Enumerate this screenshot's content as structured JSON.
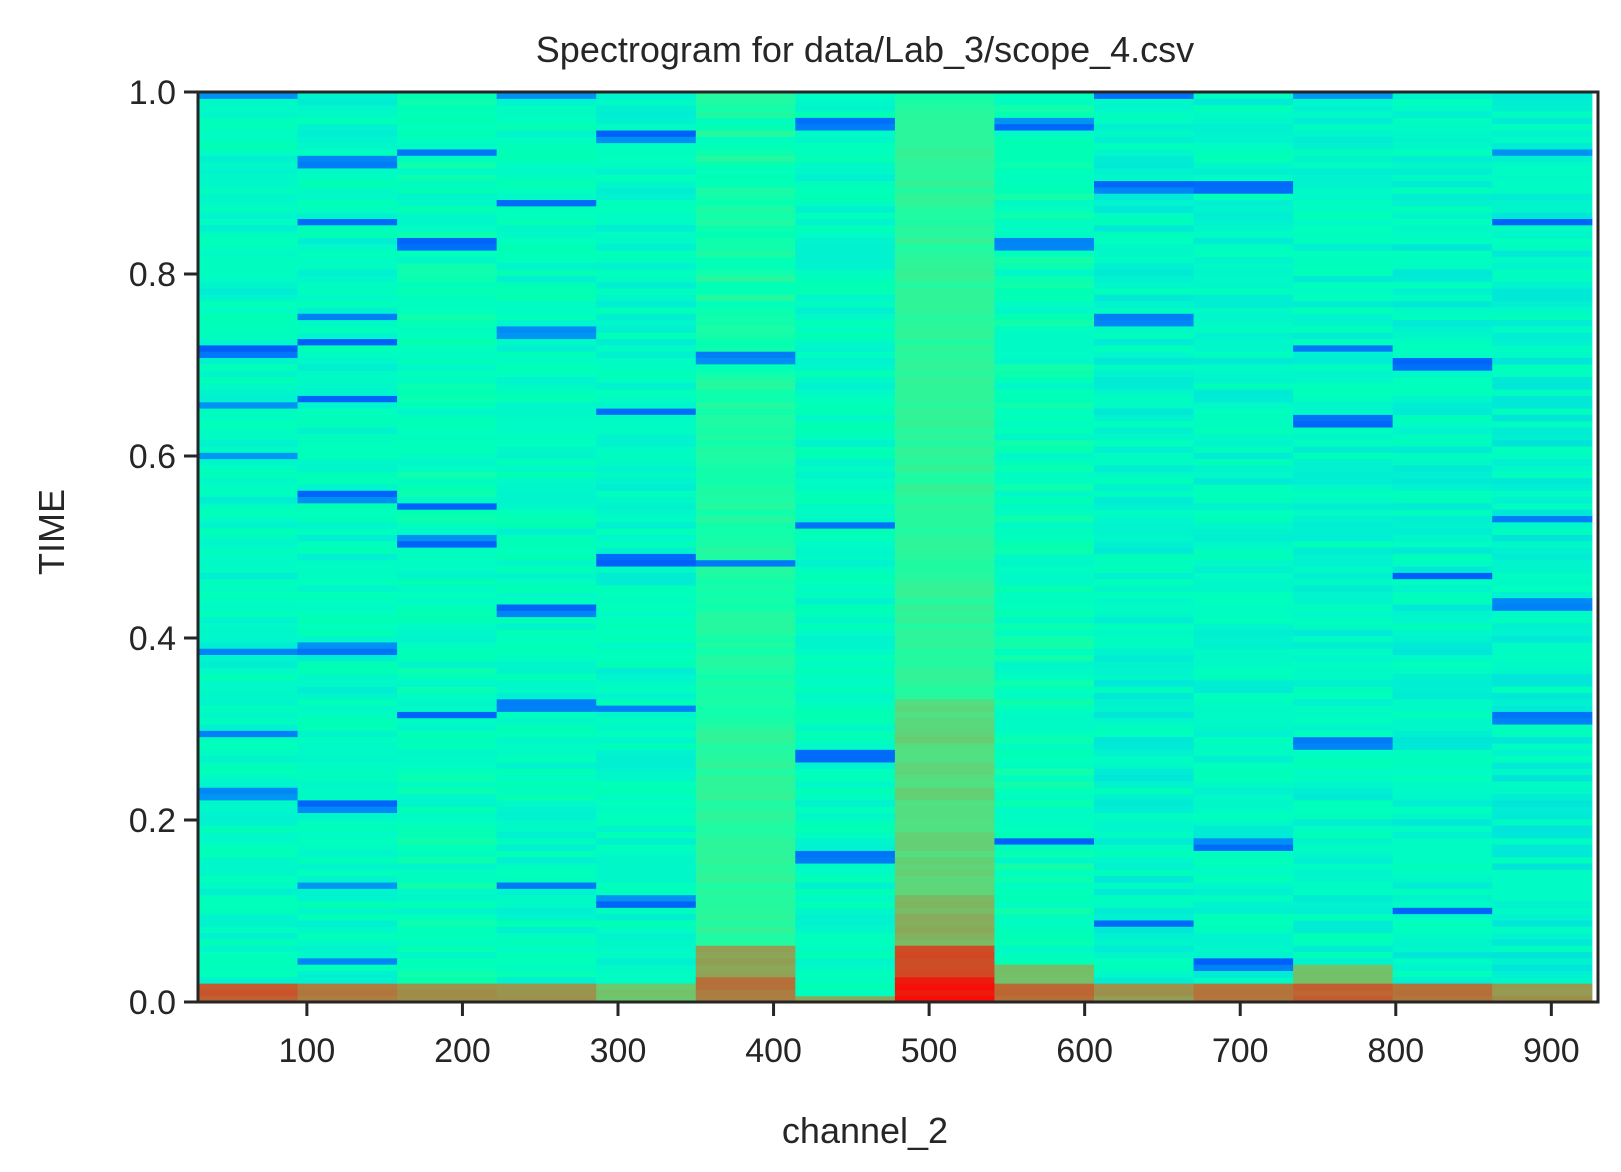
{
  "chart_data": {
    "type": "heatmap",
    "title": "Spectrogram for data/Lab_3/scope_4.csv",
    "xlabel": "channel_2",
    "ylabel": "TIME",
    "xlim": [
      30,
      930
    ],
    "ylim": [
      0,
      1.0
    ],
    "x_ticks": [
      100,
      200,
      300,
      400,
      500,
      600,
      700,
      800,
      900
    ],
    "x_tick_labels": [
      "100",
      "200",
      "300",
      "400",
      "500",
      "600",
      "700",
      "800",
      "900"
    ],
    "y_ticks": [
      0.0,
      0.2,
      0.4,
      0.6,
      0.8,
      1.0
    ],
    "y_tick_labels": [
      "0.0",
      "0.2",
      "0.4",
      "0.6",
      "0.8",
      "1.0"
    ],
    "grid": false,
    "colormap": "rainbow",
    "frequency_bins": [
      62,
      126,
      190,
      254,
      318,
      382,
      446,
      510,
      574,
      638,
      702,
      766,
      830,
      894
    ],
    "bin_width": 64,
    "time_rows": 144,
    "intensity_scale": [
      0,
      1
    ],
    "columns": [
      {
        "base": 0.44,
        "low_end": [
          [
            0.0,
            0.02,
            0.88
          ]
        ],
        "high_spots": []
      },
      {
        "base": 0.44,
        "low_end": [
          [
            0.0,
            0.02,
            0.85
          ]
        ],
        "high_spots": []
      },
      {
        "base": 0.47,
        "low_end": [
          [
            0.0,
            0.02,
            0.8
          ]
        ],
        "high_spots": []
      },
      {
        "base": 0.45,
        "low_end": [
          [
            0.0,
            0.02,
            0.8
          ]
        ],
        "high_spots": []
      },
      {
        "base": 0.44,
        "low_end": [
          [
            0.0,
            0.02,
            0.72
          ]
        ],
        "high_spots": []
      },
      {
        "base": 0.52,
        "low_end": [
          [
            0.0,
            0.03,
            0.85
          ],
          [
            0.03,
            0.06,
            0.78
          ]
        ],
        "high_spots": [
          [
            0.06,
            0.3,
            0.58
          ],
          [
            0.3,
            0.68,
            0.55
          ]
        ]
      },
      {
        "base": 0.45,
        "low_end": [
          [
            0.0,
            0.01,
            0.78
          ]
        ],
        "high_spots": []
      },
      {
        "base": 0.56,
        "low_end": [
          [
            0.0,
            0.03,
            0.98
          ],
          [
            0.03,
            0.06,
            0.9
          ]
        ],
        "high_spots": [
          [
            0.06,
            0.12,
            0.75
          ],
          [
            0.12,
            0.33,
            0.68
          ],
          [
            0.33,
            0.97,
            0.58
          ]
        ]
      },
      {
        "base": 0.48,
        "low_end": [
          [
            0.0,
            0.02,
            0.86
          ],
          [
            0.02,
            0.04,
            0.74
          ]
        ],
        "high_spots": []
      },
      {
        "base": 0.42,
        "low_end": [
          [
            0.0,
            0.02,
            0.8
          ]
        ],
        "high_spots": []
      },
      {
        "base": 0.43,
        "low_end": [
          [
            0.0,
            0.02,
            0.86
          ]
        ],
        "high_spots": []
      },
      {
        "base": 0.43,
        "low_end": [
          [
            0.0,
            0.02,
            0.88
          ],
          [
            0.02,
            0.04,
            0.72
          ]
        ],
        "high_spots": []
      },
      {
        "base": 0.42,
        "low_end": [
          [
            0.0,
            0.02,
            0.86
          ]
        ],
        "high_spots": []
      },
      {
        "base": 0.41,
        "low_end": [
          [
            0.0,
            0.02,
            0.8
          ]
        ],
        "high_spots": []
      }
    ],
    "low_intensity_lines": [
      {
        "bin": 0,
        "times": [
          0.998,
          0.715,
          0.655,
          0.6,
          0.385,
          0.295,
          0.23
        ]
      },
      {
        "bin": 1,
        "times": [
          0.925,
          0.858,
          0.755,
          0.725,
          0.662,
          0.555,
          0.39,
          0.215,
          0.13,
          0.045
        ]
      },
      {
        "bin": 2,
        "times": [
          0.935,
          0.835,
          0.545,
          0.508,
          0.315
        ]
      },
      {
        "bin": 3,
        "times": [
          0.998,
          0.88,
          0.735,
          0.43,
          0.325,
          0.13
        ]
      },
      {
        "bin": 4,
        "times": [
          0.95,
          0.648,
          0.485,
          0.322,
          0.11
        ]
      },
      {
        "bin": 5,
        "times": [
          0.708,
          0.483
        ]
      },
      {
        "bin": 6,
        "times": [
          0.965,
          0.525,
          0.27,
          0.16
        ]
      },
      {
        "bin": 8,
        "times": [
          0.965,
          0.835,
          0.178
        ]
      },
      {
        "bin": 9,
        "times": [
          0.998,
          0.895,
          0.75,
          0.088
        ]
      },
      {
        "bin": 10,
        "times": [
          0.895,
          0.175,
          0.043
        ]
      },
      {
        "bin": 11,
        "times": [
          0.995,
          0.718,
          0.64,
          0.283
        ]
      },
      {
        "bin": 12,
        "times": [
          0.7,
          0.47,
          0.1
        ]
      },
      {
        "bin": 13,
        "times": [
          0.935,
          0.858,
          0.53,
          0.438,
          0.312
        ]
      }
    ]
  }
}
